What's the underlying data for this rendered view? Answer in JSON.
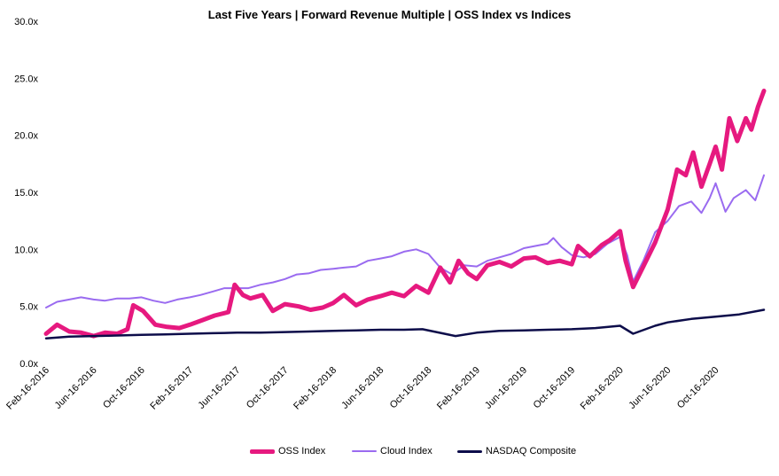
{
  "chart_data": {
    "type": "line",
    "title": "Last Five Years | Forward Revenue Multiple | OSS Index vs Indices",
    "ylim": [
      0,
      30
    ],
    "y_ticks": [
      "0.0x",
      "5.0x",
      "10.0x",
      "15.0x",
      "20.0x",
      "25.0x",
      "30.0x"
    ],
    "x_range": [
      "2016-02-16",
      "2021-02-16"
    ],
    "x_ticks": [
      "Feb-16-2016",
      "Jun-16-2016",
      "Oct-16-2016",
      "Feb-16-2017",
      "Jun-16-2017",
      "Oct-16-2017",
      "Feb-16-2018",
      "Jun-16-2018",
      "Oct-16-2018",
      "Feb-16-2019",
      "Jun-16-2019",
      "Oct-16-2019",
      "Feb-16-2020",
      "Jun-16-2020",
      "Oct-16-2020"
    ],
    "grid": false,
    "legend_position": "bottom",
    "series": [
      {
        "name": "OSS Index",
        "color": "#E6197F",
        "width": 5,
        "points": [
          [
            "2016-02-16",
            2.6
          ],
          [
            "2016-03-15",
            3.4
          ],
          [
            "2016-04-15",
            2.8
          ],
          [
            "2016-05-15",
            2.7
          ],
          [
            "2016-06-16",
            2.4
          ],
          [
            "2016-07-15",
            2.7
          ],
          [
            "2016-08-15",
            2.6
          ],
          [
            "2016-09-10",
            3.0
          ],
          [
            "2016-09-25",
            5.1
          ],
          [
            "2016-10-20",
            4.6
          ],
          [
            "2016-11-20",
            3.4
          ],
          [
            "2016-12-20",
            3.2
          ],
          [
            "2017-01-20",
            3.1
          ],
          [
            "2017-02-16",
            3.4
          ],
          [
            "2017-03-20",
            3.8
          ],
          [
            "2017-04-20",
            4.2
          ],
          [
            "2017-05-25",
            4.5
          ],
          [
            "2017-06-10",
            6.9
          ],
          [
            "2017-07-01",
            6.0
          ],
          [
            "2017-07-20",
            5.7
          ],
          [
            "2017-08-20",
            6.0
          ],
          [
            "2017-09-15",
            4.6
          ],
          [
            "2017-10-16",
            5.2
          ],
          [
            "2017-11-20",
            5.0
          ],
          [
            "2017-12-20",
            4.7
          ],
          [
            "2018-01-20",
            4.9
          ],
          [
            "2018-02-16",
            5.3
          ],
          [
            "2018-03-15",
            6.0
          ],
          [
            "2018-04-15",
            5.1
          ],
          [
            "2018-05-15",
            5.6
          ],
          [
            "2018-06-16",
            5.9
          ],
          [
            "2018-07-15",
            6.2
          ],
          [
            "2018-08-15",
            5.9
          ],
          [
            "2018-09-15",
            6.8
          ],
          [
            "2018-10-16",
            6.2
          ],
          [
            "2018-11-15",
            8.4
          ],
          [
            "2018-12-10",
            7.1
          ],
          [
            "2019-01-01",
            9.0
          ],
          [
            "2019-01-25",
            7.9
          ],
          [
            "2019-02-16",
            7.4
          ],
          [
            "2019-03-15",
            8.6
          ],
          [
            "2019-04-15",
            8.9
          ],
          [
            "2019-05-15",
            8.5
          ],
          [
            "2019-06-16",
            9.2
          ],
          [
            "2019-07-15",
            9.3
          ],
          [
            "2019-08-15",
            8.8
          ],
          [
            "2019-09-15",
            9.0
          ],
          [
            "2019-10-16",
            8.7
          ],
          [
            "2019-11-01",
            10.3
          ],
          [
            "2019-12-01",
            9.4
          ],
          [
            "2020-01-01",
            10.4
          ],
          [
            "2020-01-20",
            10.8
          ],
          [
            "2020-02-16",
            11.6
          ],
          [
            "2020-03-01",
            9.0
          ],
          [
            "2020-03-20",
            6.7
          ],
          [
            "2020-04-15",
            8.5
          ],
          [
            "2020-05-15",
            10.6
          ],
          [
            "2020-06-16",
            13.5
          ],
          [
            "2020-07-10",
            17.0
          ],
          [
            "2020-08-01",
            16.5
          ],
          [
            "2020-08-20",
            18.5
          ],
          [
            "2020-09-10",
            15.5
          ],
          [
            "2020-10-01",
            17.5
          ],
          [
            "2020-10-16",
            19.0
          ],
          [
            "2020-11-01",
            17.0
          ],
          [
            "2020-11-20",
            21.5
          ],
          [
            "2020-12-10",
            19.5
          ],
          [
            "2021-01-01",
            21.5
          ],
          [
            "2021-01-15",
            20.5
          ],
          [
            "2021-02-01",
            22.5
          ],
          [
            "2021-02-16",
            23.9
          ]
        ]
      },
      {
        "name": "Cloud Index",
        "color": "#9A6BF0",
        "width": 2,
        "points": [
          [
            "2016-02-16",
            4.9
          ],
          [
            "2016-03-15",
            5.4
          ],
          [
            "2016-04-15",
            5.6
          ],
          [
            "2016-05-15",
            5.8
          ],
          [
            "2016-06-16",
            5.6
          ],
          [
            "2016-07-15",
            5.5
          ],
          [
            "2016-08-15",
            5.7
          ],
          [
            "2016-09-15",
            5.7
          ],
          [
            "2016-10-16",
            5.8
          ],
          [
            "2016-11-15",
            5.5
          ],
          [
            "2016-12-15",
            5.3
          ],
          [
            "2017-01-15",
            5.6
          ],
          [
            "2017-02-16",
            5.8
          ],
          [
            "2017-03-15",
            6.0
          ],
          [
            "2017-04-15",
            6.3
          ],
          [
            "2017-05-15",
            6.6
          ],
          [
            "2017-06-16",
            6.6
          ],
          [
            "2017-07-15",
            6.6
          ],
          [
            "2017-08-15",
            6.9
          ],
          [
            "2017-09-15",
            7.1
          ],
          [
            "2017-10-16",
            7.4
          ],
          [
            "2017-11-15",
            7.8
          ],
          [
            "2017-12-15",
            7.9
          ],
          [
            "2018-01-15",
            8.2
          ],
          [
            "2018-02-16",
            8.3
          ],
          [
            "2018-03-15",
            8.4
          ],
          [
            "2018-04-15",
            8.5
          ],
          [
            "2018-05-15",
            9.0
          ],
          [
            "2018-06-16",
            9.2
          ],
          [
            "2018-07-15",
            9.4
          ],
          [
            "2018-08-15",
            9.8
          ],
          [
            "2018-09-15",
            10.0
          ],
          [
            "2018-10-16",
            9.6
          ],
          [
            "2018-11-15",
            8.4
          ],
          [
            "2018-12-15",
            7.8
          ],
          [
            "2019-01-15",
            8.6
          ],
          [
            "2019-02-16",
            8.5
          ],
          [
            "2019-03-15",
            9.0
          ],
          [
            "2019-04-15",
            9.3
          ],
          [
            "2019-05-15",
            9.6
          ],
          [
            "2019-06-16",
            10.1
          ],
          [
            "2019-07-15",
            10.3
          ],
          [
            "2019-08-15",
            10.5
          ],
          [
            "2019-08-30",
            11.0
          ],
          [
            "2019-09-20",
            10.2
          ],
          [
            "2019-10-16",
            9.5
          ],
          [
            "2019-11-15",
            9.3
          ],
          [
            "2019-12-15",
            9.6
          ],
          [
            "2020-01-15",
            10.5
          ],
          [
            "2020-02-16",
            11.1
          ],
          [
            "2020-03-05",
            9.5
          ],
          [
            "2020-03-20",
            7.2
          ],
          [
            "2020-04-15",
            9.0
          ],
          [
            "2020-05-15",
            11.5
          ],
          [
            "2020-06-16",
            12.5
          ],
          [
            "2020-07-15",
            13.8
          ],
          [
            "2020-08-15",
            14.2
          ],
          [
            "2020-09-10",
            13.2
          ],
          [
            "2020-10-01",
            14.5
          ],
          [
            "2020-10-16",
            15.8
          ],
          [
            "2020-11-10",
            13.3
          ],
          [
            "2020-12-01",
            14.5
          ],
          [
            "2021-01-01",
            15.2
          ],
          [
            "2021-01-25",
            14.3
          ],
          [
            "2021-02-16",
            16.5
          ]
        ]
      },
      {
        "name": "NASDAQ Composite",
        "color": "#0D0D4A",
        "width": 2.5,
        "points": [
          [
            "2016-02-16",
            2.2
          ],
          [
            "2016-04-15",
            2.35
          ],
          [
            "2016-06-16",
            2.4
          ],
          [
            "2016-08-15",
            2.45
          ],
          [
            "2016-10-16",
            2.5
          ],
          [
            "2016-12-15",
            2.55
          ],
          [
            "2017-02-16",
            2.6
          ],
          [
            "2017-04-15",
            2.65
          ],
          [
            "2017-06-16",
            2.7
          ],
          [
            "2017-08-15",
            2.7
          ],
          [
            "2017-10-16",
            2.75
          ],
          [
            "2017-12-15",
            2.8
          ],
          [
            "2018-02-16",
            2.85
          ],
          [
            "2018-04-15",
            2.9
          ],
          [
            "2018-06-16",
            2.95
          ],
          [
            "2018-08-15",
            2.95
          ],
          [
            "2018-10-01",
            3.0
          ],
          [
            "2018-12-24",
            2.4
          ],
          [
            "2019-02-16",
            2.7
          ],
          [
            "2019-04-15",
            2.85
          ],
          [
            "2019-06-16",
            2.9
          ],
          [
            "2019-08-15",
            2.95
          ],
          [
            "2019-10-16",
            3.0
          ],
          [
            "2019-12-15",
            3.1
          ],
          [
            "2020-02-16",
            3.3
          ],
          [
            "2020-03-20",
            2.6
          ],
          [
            "2020-05-15",
            3.3
          ],
          [
            "2020-06-16",
            3.6
          ],
          [
            "2020-08-15",
            3.9
          ],
          [
            "2020-10-16",
            4.1
          ],
          [
            "2020-12-15",
            4.3
          ],
          [
            "2021-02-16",
            4.7
          ]
        ]
      }
    ]
  }
}
